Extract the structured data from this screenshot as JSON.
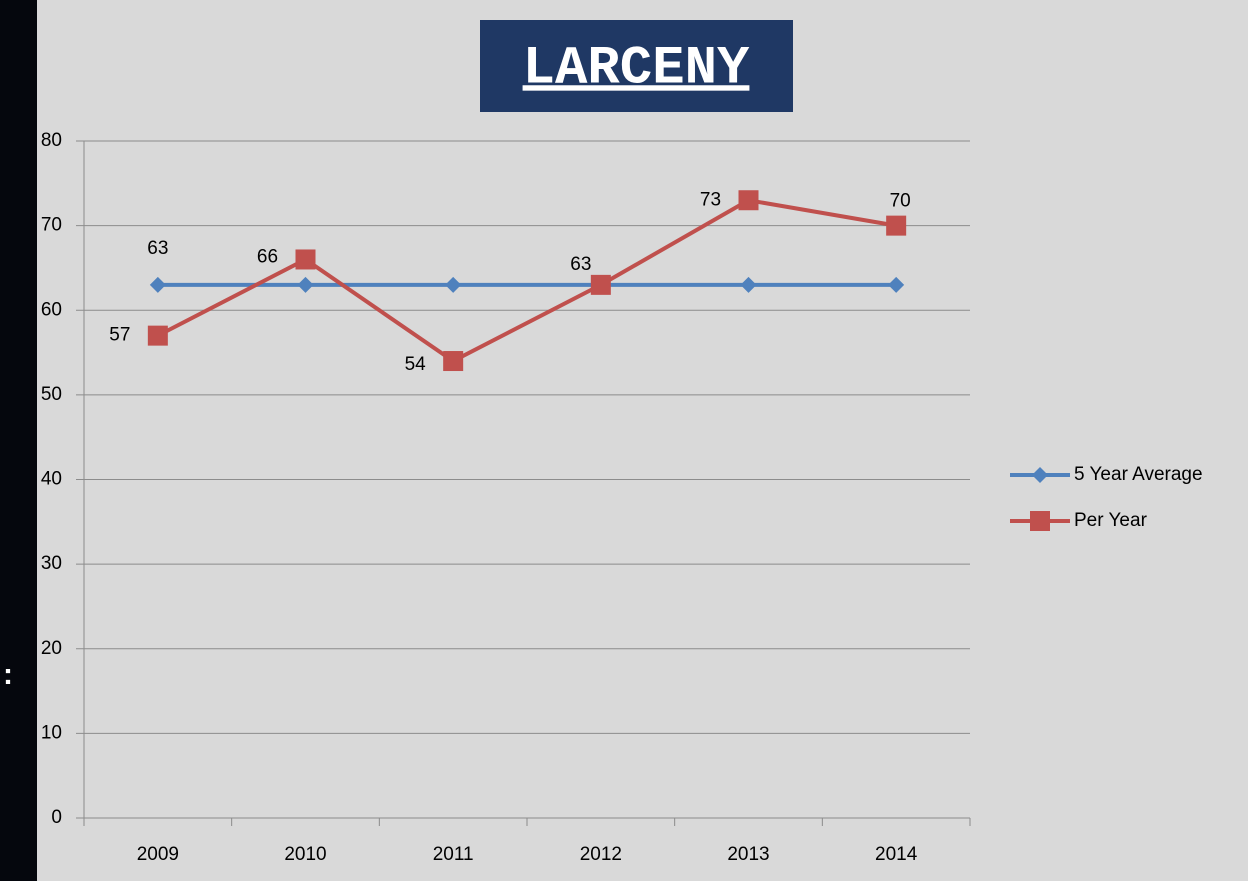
{
  "chart_data": {
    "type": "line",
    "title": "LARCENY",
    "categories": [
      "2009",
      "2010",
      "2011",
      "2012",
      "2013",
      "2014"
    ],
    "series": [
      {
        "name": "5 Year Average",
        "color": "#4f81bd",
        "marker": "diamond",
        "values": [
          63,
          63,
          63,
          63,
          63,
          63
        ],
        "data_labels": [
          true,
          false,
          false,
          false,
          false,
          false
        ]
      },
      {
        "name": "Per Year",
        "color": "#c0504d",
        "marker": "square",
        "values": [
          57,
          66,
          54,
          63,
          73,
          70
        ],
        "data_labels": [
          true,
          true,
          true,
          true,
          true,
          true
        ]
      }
    ],
    "ylim": [
      0,
      80
    ],
    "yticks": [
      0,
      10,
      20,
      30,
      40,
      50,
      60,
      70,
      80
    ],
    "grid": true,
    "legend": "right"
  }
}
